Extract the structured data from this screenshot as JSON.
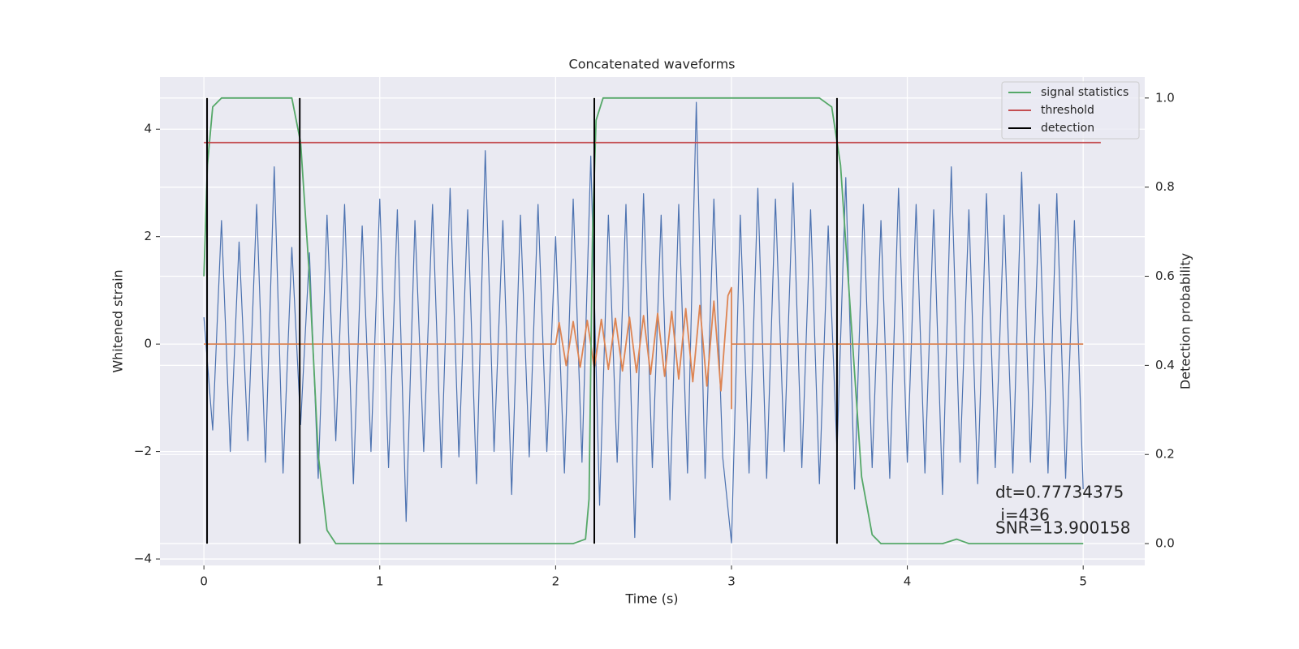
{
  "chart_data": {
    "type": "line",
    "title": "Concatenated waveforms",
    "xlabel": "Time (s)",
    "ylabel": "Whitened strain",
    "y2label": "Detection probability",
    "xlim": [
      -0.25,
      5.35
    ],
    "ylim": [
      -4.12,
      4.97
    ],
    "y2lim": [
      -0.049,
      1.047
    ],
    "xticks": [
      0,
      1,
      2,
      3,
      4,
      5
    ],
    "yticks": [
      {
        "value": -4,
        "label": "−4"
      },
      {
        "value": -2,
        "label": "−2"
      },
      0,
      2,
      4
    ],
    "y2ticks": [
      {
        "value": 0,
        "label": "0.0"
      },
      0.2,
      0.4,
      0.6,
      0.8,
      {
        "value": 1,
        "label": "1.0"
      }
    ],
    "grid": true,
    "legend": "upper right",
    "annotations": [
      "dt=0.77734375",
      " i=436",
      "SNR=13.900158"
    ],
    "series": [
      {
        "color": "#4c72b0",
        "x": [
          0,
          0.05,
          0.1,
          0.15,
          0.2,
          0.25,
          0.3,
          0.35,
          0.4,
          0.45,
          0.5,
          0.55,
          0.6,
          0.65,
          0.7,
          0.75,
          0.8,
          0.85,
          0.9,
          0.95,
          1.0,
          1.05,
          1.1,
          1.15,
          1.2,
          1.25,
          1.3,
          1.35,
          1.4,
          1.45,
          1.5,
          1.55,
          1.6,
          1.65,
          1.7,
          1.75,
          1.8,
          1.85,
          1.9,
          1.95,
          2.0,
          2.05,
          2.1,
          2.15,
          2.2,
          2.25,
          2.3,
          2.35,
          2.4,
          2.45,
          2.5,
          2.55,
          2.6,
          2.65,
          2.7,
          2.75,
          2.8,
          2.85,
          2.9,
          2.95,
          3.0,
          3.05,
          3.1,
          3.15,
          3.2,
          3.25,
          3.3,
          3.35,
          3.4,
          3.45,
          3.5,
          3.55,
          3.6,
          3.65,
          3.7,
          3.75,
          3.8,
          3.85,
          3.9,
          3.95,
          4.0,
          4.05,
          4.1,
          4.15,
          4.2,
          4.25,
          4.3,
          4.35,
          4.4,
          4.45,
          4.5,
          4.55,
          4.6,
          4.65,
          4.7,
          4.75,
          4.8,
          4.85,
          4.9,
          4.95,
          5.0
        ],
        "values": [
          0.5,
          -1.6,
          2.3,
          -2.0,
          1.9,
          -1.8,
          2.6,
          -2.2,
          3.3,
          -2.4,
          1.8,
          -1.5,
          1.7,
          -2.5,
          2.4,
          -1.8,
          2.6,
          -2.6,
          2.2,
          -2.0,
          2.7,
          -2.3,
          2.5,
          -3.3,
          2.3,
          -2.0,
          2.6,
          -2.3,
          2.9,
          -2.1,
          2.5,
          -2.6,
          3.6,
          -2.0,
          2.3,
          -2.8,
          2.4,
          -2.1,
          2.6,
          -2.0,
          2.0,
          -2.4,
          2.7,
          -2.2,
          3.5,
          -3.0,
          2.4,
          -2.2,
          2.6,
          -3.6,
          2.8,
          -2.3,
          2.4,
          -2.9,
          2.6,
          -2.4,
          4.5,
          -2.5,
          2.7,
          -2.1,
          -3.7,
          2.4,
          -2.4,
          2.9,
          -2.5,
          2.7,
          -2.0,
          3.0,
          -2.3,
          2.5,
          -2.6,
          2.2,
          -2.0,
          3.1,
          -2.7,
          2.6,
          -2.3,
          2.3,
          -2.5,
          2.9,
          -2.2,
          2.6,
          -2.4,
          2.5,
          -2.8,
          3.3,
          -2.2,
          2.5,
          -2.6,
          2.8,
          -2.3,
          2.4,
          -2.4,
          3.2,
          -2.2,
          2.6,
          -2.4,
          2.8,
          -2.5,
          2.3,
          -2.7
        ]
      },
      {
        "color": "#dd8452",
        "x": [
          0,
          2.0,
          2.02,
          2.06,
          2.1,
          2.14,
          2.18,
          2.22,
          2.26,
          2.3,
          2.34,
          2.38,
          2.42,
          2.46,
          2.5,
          2.54,
          2.58,
          2.62,
          2.66,
          2.7,
          2.74,
          2.78,
          2.82,
          2.86,
          2.9,
          2.94,
          2.98,
          3.0,
          3.0,
          3.0,
          5.0
        ],
        "values": [
          0,
          0,
          0.4,
          -0.4,
          0.42,
          -0.43,
          0.44,
          -0.45,
          0.46,
          -0.47,
          0.48,
          -0.5,
          0.5,
          -0.53,
          0.53,
          -0.56,
          0.57,
          -0.6,
          0.61,
          -0.65,
          0.66,
          -0.7,
          0.72,
          -0.78,
          0.8,
          -0.87,
          0.9,
          1.05,
          -1.2,
          0,
          0
        ]
      },
      {
        "name": "signal statistics",
        "color": "#55a868",
        "axis": "y2",
        "x": [
          0,
          0.02,
          0.05,
          0.1,
          0.5,
          0.55,
          0.6,
          0.65,
          0.7,
          0.75,
          2.1,
          2.17,
          2.19,
          2.21,
          2.23,
          2.27,
          3.5,
          3.57,
          3.62,
          3.68,
          3.74,
          3.8,
          3.85,
          4.2,
          4.28,
          4.35,
          5.0
        ],
        "values": [
          0.6,
          0.85,
          0.98,
          1.0,
          1.0,
          0.9,
          0.6,
          0.2,
          0.03,
          0.0,
          0.0,
          0.01,
          0.1,
          0.7,
          0.95,
          1.0,
          1.0,
          0.98,
          0.85,
          0.5,
          0.15,
          0.02,
          0,
          0,
          0.01,
          0,
          0
        ]
      },
      {
        "name": "threshold",
        "color": "#c44e52",
        "axis": "y2",
        "x": [
          0,
          5.1
        ],
        "values": [
          0.9,
          0.9
        ]
      },
      {
        "name": "detection",
        "color": "#000000",
        "axis": "y2",
        "vertical": true,
        "x": [
          0.018,
          0.545,
          2.22,
          3.6
        ],
        "ymin": 0,
        "ymax": 1
      }
    ]
  }
}
